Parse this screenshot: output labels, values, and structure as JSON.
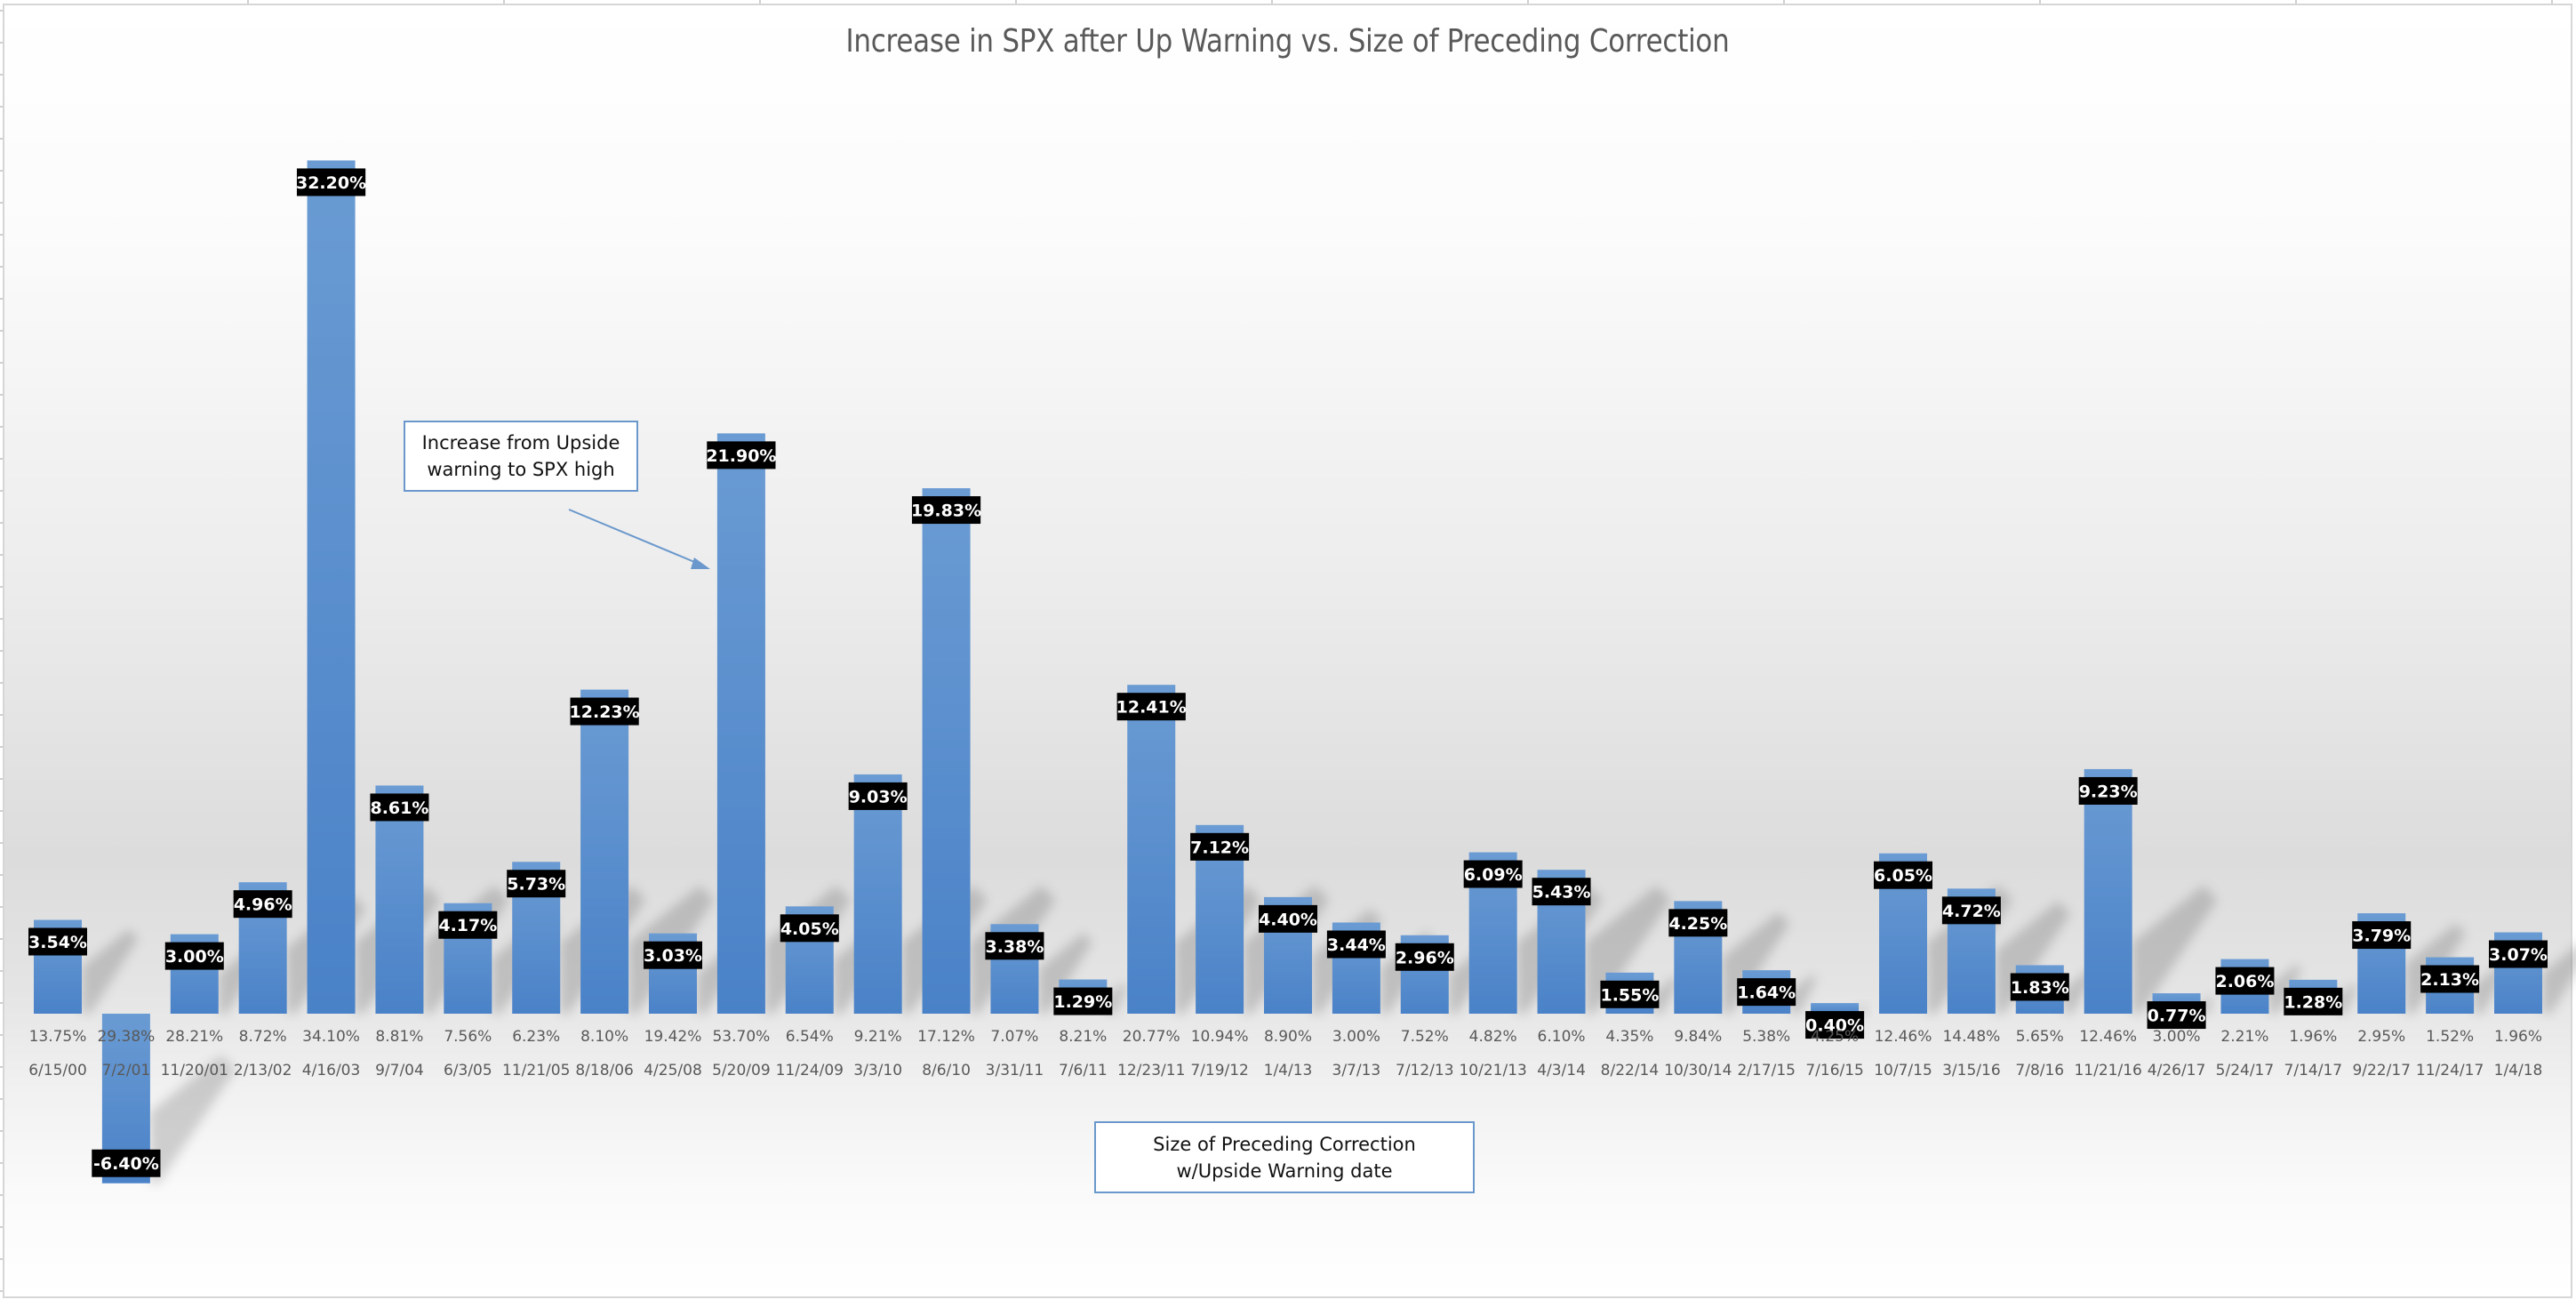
{
  "chart_data": {
    "type": "bar",
    "title": "Increase in SPX after Up Warning vs. Size of Preceding Correction",
    "xlabel": "",
    "ylabel": "",
    "ylim": [
      -6.4,
      32.2
    ],
    "grid": false,
    "legend": "none",
    "colors": {
      "bar": "#5b8fd0",
      "bar_top": "#6a9bd3",
      "bar_bottom": "#4a82c8",
      "label_bg": "#000000",
      "label_text": "#ffffff",
      "callout_border": "#6a98cc"
    },
    "categories": [
      "6/15/00",
      "7/2/01",
      "11/20/01",
      "2/13/02",
      "4/16/03",
      "9/7/04",
      "6/3/05",
      "11/21/05",
      "8/18/06",
      "4/25/08",
      "5/20/09",
      "11/24/09",
      "3/3/10",
      "8/6/10",
      "3/31/11",
      "7/6/11",
      "12/23/11",
      "7/19/12",
      "1/4/13",
      "3/7/13",
      "7/12/13",
      "10/21/13",
      "4/3/14",
      "8/22/14",
      "10/30/14",
      "2/17/15",
      "7/16/15",
      "10/7/15",
      "3/15/16",
      "7/8/16",
      "11/21/16",
      "4/26/17",
      "5/24/17",
      "7/14/17",
      "9/22/17",
      "11/24/17",
      "1/4/18"
    ],
    "correction_labels": [
      "13.75%",
      "29.38%",
      "28.21%",
      "8.72%",
      "34.10%",
      "8.81%",
      "7.56%",
      "6.23%",
      "8.10%",
      "19.42%",
      "53.70%",
      "6.54%",
      "9.21%",
      "17.12%",
      "7.07%",
      "8.21%",
      "20.77%",
      "10.94%",
      "8.90%",
      "3.00%",
      "7.52%",
      "4.82%",
      "6.10%",
      "4.35%",
      "9.84%",
      "5.38%",
      "4.25%",
      "12.46%",
      "14.48%",
      "5.65%",
      "12.46%",
      "3.00%",
      "2.21%",
      "1.96%",
      "2.95%",
      "1.52%",
      "1.96%"
    ],
    "series": [
      {
        "name": "Increase from Upside warning to SPX high",
        "values": [
          3.54,
          -6.4,
          3.0,
          4.96,
          32.2,
          8.61,
          4.17,
          5.73,
          12.23,
          3.03,
          21.9,
          4.05,
          9.03,
          19.83,
          3.38,
          1.29,
          12.41,
          7.12,
          4.4,
          3.44,
          2.96,
          6.09,
          5.43,
          1.55,
          4.25,
          1.64,
          0.4,
          6.05,
          4.72,
          1.83,
          9.23,
          0.77,
          2.06,
          1.28,
          3.79,
          2.13,
          3.07
        ],
        "data_labels": [
          "3.54%",
          "-6.40%",
          "3.00%",
          "4.96%",
          "32.20%",
          "8.61%",
          "4.17%",
          "5.73%",
          "12.23%",
          "3.03%",
          "21.90%",
          "4.05%",
          "9.03%",
          "19.83%",
          "3.38%",
          "1.29%",
          "12.41%",
          "7.12%",
          "4.40%",
          "3.44%",
          "2.96%",
          "6.09%",
          "5.43%",
          "1.55%",
          "4.25%",
          "1.64%",
          "0.40%",
          "6.05%",
          "4.72%",
          "1.83%",
          "9.23%",
          "0.77%",
          "2.06%",
          "1.28%",
          "3.79%",
          "2.13%",
          "3.07%"
        ]
      }
    ],
    "annotations": {
      "series_callout": [
        "Increase from Upside",
        "warning to SPX high"
      ],
      "axis_callout": [
        "Size of Preceding Correction",
        "w/Upside Warning date"
      ]
    }
  }
}
